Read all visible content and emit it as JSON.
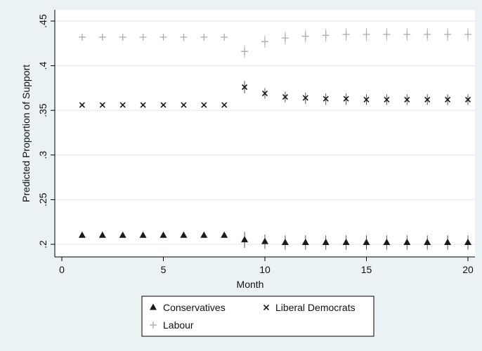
{
  "chart_data": {
    "type": "scatter",
    "xlabel": "Month",
    "ylabel": "Predicted Proportion of Support",
    "xlim": [
      0,
      20
    ],
    "ylim": [
      0.2,
      0.45
    ],
    "x_ticks": [
      "0",
      "5",
      "10",
      "15",
      "20"
    ],
    "y_ticks": [
      ".2",
      ".25",
      ".3",
      ".35",
      ".4",
      ".45"
    ],
    "grid": "horizontal",
    "legend_position": "bottom",
    "x": [
      1,
      2,
      3,
      4,
      5,
      6,
      7,
      8,
      9,
      10,
      11,
      12,
      13,
      14,
      15,
      16,
      17,
      18,
      19,
      20
    ],
    "series": [
      {
        "name": "Conservatives",
        "marker": "triangle",
        "color": "#1a1a1a",
        "values": [
          0.21,
          0.21,
          0.21,
          0.21,
          0.21,
          0.21,
          0.21,
          0.21,
          0.205,
          0.203,
          0.202,
          0.202,
          0.202,
          0.202,
          0.202,
          0.202,
          0.202,
          0.202,
          0.202,
          0.202
        ],
        "ci_low": [
          0.208,
          0.208,
          0.208,
          0.208,
          0.208,
          0.208,
          0.208,
          0.208,
          0.196,
          0.195,
          0.194,
          0.194,
          0.194,
          0.194,
          0.194,
          0.194,
          0.194,
          0.194,
          0.194,
          0.194
        ],
        "ci_high": [
          0.212,
          0.212,
          0.212,
          0.212,
          0.212,
          0.212,
          0.212,
          0.212,
          0.214,
          0.211,
          0.21,
          0.21,
          0.21,
          0.21,
          0.21,
          0.21,
          0.21,
          0.21,
          0.21,
          0.21
        ]
      },
      {
        "name": "Liberal Democrats",
        "marker": "x",
        "color": "#1a1a1a",
        "values": [
          0.356,
          0.356,
          0.356,
          0.356,
          0.356,
          0.356,
          0.356,
          0.356,
          0.376,
          0.369,
          0.365,
          0.364,
          0.363,
          0.363,
          0.362,
          0.362,
          0.362,
          0.362,
          0.362,
          0.362
        ],
        "ci_low": [
          0.355,
          0.355,
          0.355,
          0.355,
          0.355,
          0.355,
          0.355,
          0.355,
          0.369,
          0.363,
          0.359,
          0.357,
          0.356,
          0.356,
          0.356,
          0.356,
          0.356,
          0.356,
          0.356,
          0.356
        ],
        "ci_high": [
          0.357,
          0.357,
          0.357,
          0.357,
          0.357,
          0.357,
          0.357,
          0.357,
          0.383,
          0.375,
          0.371,
          0.37,
          0.369,
          0.369,
          0.368,
          0.368,
          0.368,
          0.368,
          0.368,
          0.368
        ]
      },
      {
        "name": "Labour",
        "marker": "plus",
        "color": "#b0b0b0",
        "values": [
          0.432,
          0.432,
          0.432,
          0.432,
          0.432,
          0.432,
          0.432,
          0.432,
          0.416,
          0.427,
          0.431,
          0.433,
          0.434,
          0.435,
          0.435,
          0.435,
          0.435,
          0.435,
          0.435,
          0.435
        ],
        "ci_low": [
          0.431,
          0.431,
          0.431,
          0.431,
          0.431,
          0.431,
          0.431,
          0.431,
          0.409,
          0.42,
          0.424,
          0.426,
          0.427,
          0.428,
          0.428,
          0.428,
          0.428,
          0.428,
          0.428,
          0.428
        ],
        "ci_high": [
          0.433,
          0.433,
          0.433,
          0.433,
          0.433,
          0.433,
          0.433,
          0.433,
          0.423,
          0.434,
          0.438,
          0.44,
          0.441,
          0.442,
          0.442,
          0.442,
          0.442,
          0.442,
          0.442,
          0.442
        ]
      }
    ]
  }
}
